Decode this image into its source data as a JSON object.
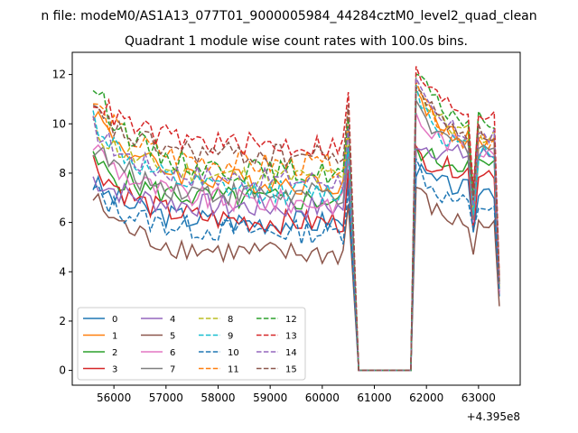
{
  "suptitle": "n file: modeM0/AS1A13_077T01_9000005984_44284cztM0_level2_quad_clean",
  "chart_data": {
    "type": "line",
    "title": "Quadrant 1 module wise count rates with 100.0s bins.",
    "xlabel": "",
    "ylabel": "",
    "x_offset_label": "+4.395e8",
    "xlim": [
      55200,
      63800
    ],
    "ylim": [
      -0.6,
      12.9
    ],
    "x_ticks": [
      56000,
      57000,
      58000,
      59000,
      60000,
      61000,
      62000,
      63000
    ],
    "x_tick_labels": [
      "56000",
      "57000",
      "58000",
      "59000",
      "60000",
      "61000",
      "62000",
      "63000"
    ],
    "y_ticks": [
      0,
      2,
      4,
      6,
      8,
      10,
      12
    ],
    "y_tick_labels": [
      "0",
      "2",
      "4",
      "6",
      "8",
      "10",
      "12"
    ],
    "grid": false,
    "legend_position": "lower-left",
    "legend_columns": 4,
    "segments": [
      {
        "x_start": 55600,
        "step": 100,
        "count": 50
      },
      {
        "x_start": 60700,
        "step": 100,
        "count": 11
      },
      {
        "x_start": 61800,
        "step": 100,
        "count": 17
      }
    ],
    "series": [
      {
        "name": "0",
        "color": "#1f77b4",
        "dash": "solid",
        "base": 6.0,
        "start": 7.6,
        "peak": 8.2,
        "post": 7.3,
        "dip": 5.6,
        "end": 3.0
      },
      {
        "name": "1",
        "color": "#ff7f0e",
        "dash": "solid",
        "base": 7.6,
        "start": 10.6,
        "peak": 11.5,
        "post": 9.3,
        "dip": 6.2,
        "end": 3.5
      },
      {
        "name": "2",
        "color": "#2ca02c",
        "dash": "solid",
        "base": 6.9,
        "start": 8.5,
        "peak": 9.0,
        "post": 8.3,
        "dip": 5.8,
        "end": 3.5
      },
      {
        "name": "3",
        "color": "#d62728",
        "dash": "solid",
        "base": 6.0,
        "start": 8.5,
        "peak": 8.8,
        "post": 8.1,
        "dip": 5.7,
        "end": 3.2
      },
      {
        "name": "4",
        "color": "#9467bd",
        "dash": "solid",
        "base": 6.6,
        "start": 7.8,
        "peak": 9.3,
        "post": 8.7,
        "dip": 6.0,
        "end": 3.1
      },
      {
        "name": "5",
        "color": "#8c564b",
        "dash": "solid",
        "base": 4.7,
        "start": 7.0,
        "peak": 7.5,
        "post": 5.8,
        "dip": 4.7,
        "end": 2.6
      },
      {
        "name": "6",
        "color": "#e377c2",
        "dash": "solid",
        "base": 6.8,
        "start": 9.2,
        "peak": 10.3,
        "post": 9.0,
        "dip": 6.0,
        "end": 3.2
      },
      {
        "name": "7",
        "color": "#7f7f7f",
        "dash": "solid",
        "base": 7.1,
        "start": 9.1,
        "peak": 10.6,
        "post": 9.0,
        "dip": 6.1,
        "end": 3.3
      },
      {
        "name": "8",
        "color": "#bcbd22",
        "dash": "dashed",
        "base": 7.8,
        "start": 9.9,
        "peak": 11.8,
        "post": 9.4,
        "dip": 6.4,
        "end": 3.4
      },
      {
        "name": "9",
        "color": "#17becf",
        "dash": "dashed",
        "base": 7.2,
        "start": 10.3,
        "peak": 11.6,
        "post": 8.8,
        "dip": 6.3,
        "end": 3.5
      },
      {
        "name": "10",
        "color": "#1f77b4",
        "dash": "dashed",
        "base": 5.6,
        "start": 7.3,
        "peak": 8.4,
        "post": 6.6,
        "dip": 5.7,
        "end": 3.2
      },
      {
        "name": "11",
        "color": "#ff7f0e",
        "dash": "dashed",
        "base": 8.3,
        "start": 10.9,
        "peak": 12.1,
        "post": 9.1,
        "dip": 6.9,
        "end": 3.7
      },
      {
        "name": "12",
        "color": "#2ca02c",
        "dash": "dashed",
        "base": 8.0,
        "start": 11.6,
        "peak": 12.2,
        "post": 10.0,
        "dip": 7.1,
        "end": 3.6
      },
      {
        "name": "13",
        "color": "#d62728",
        "dash": "dashed",
        "base": 9.1,
        "start": 11.1,
        "peak": 12.3,
        "post": 10.4,
        "dip": 7.4,
        "end": 3.8
      },
      {
        "name": "14",
        "color": "#9467bd",
        "dash": "dashed",
        "base": 7.7,
        "start": 9.9,
        "peak": 11.6,
        "post": 9.4,
        "dip": 6.7,
        "end": 3.5
      },
      {
        "name": "15",
        "color": "#8c564b",
        "dash": "dashed",
        "base": 8.7,
        "start": 10.5,
        "peak": 11.8,
        "post": 9.5,
        "dip": 6.9,
        "end": 3.6
      }
    ]
  }
}
